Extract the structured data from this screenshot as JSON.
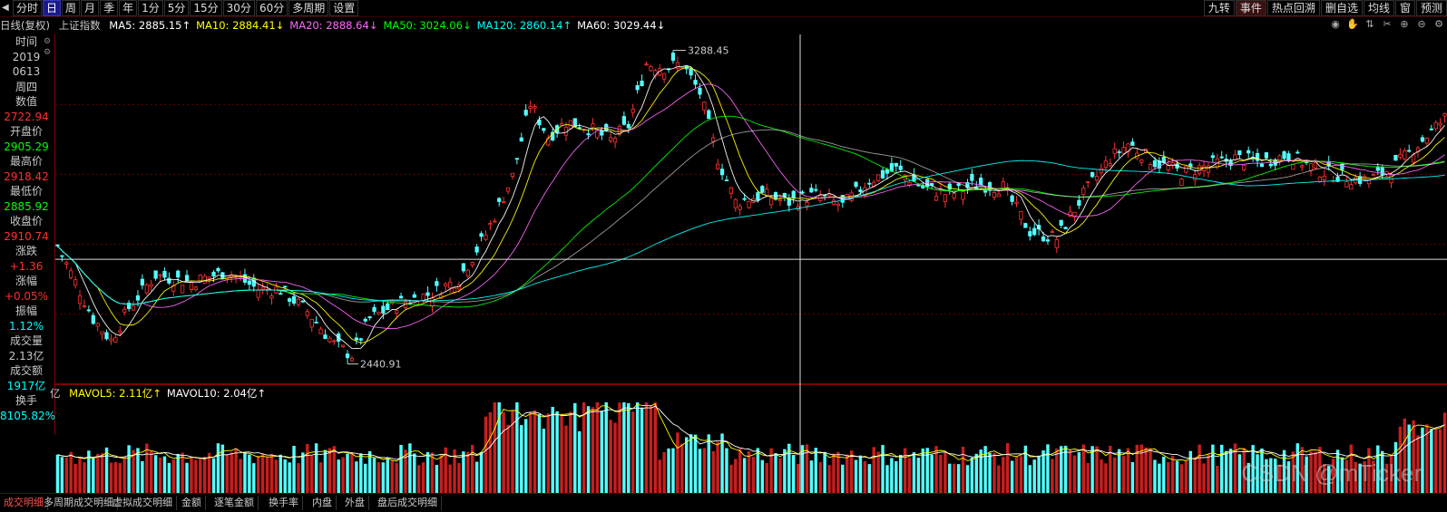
{
  "toolbar": {
    "left_items": [
      "分时",
      "日",
      "周",
      "月",
      "季",
      "年",
      "1分",
      "5分",
      "15分",
      "30分",
      "60分",
      "多周期",
      "设置"
    ],
    "active": "日",
    "right_items": [
      "九转",
      "事件",
      "热点回溯",
      "删自选",
      "均线",
      "窗",
      "预测"
    ],
    "right_active": "事件"
  },
  "infobar": {
    "label1": "日线(复权)",
    "label2": "上证指数",
    "ma": [
      {
        "text": "MA5: 2885.15↑",
        "color": "#ffffff"
      },
      {
        "text": "MA10: 2884.41↓",
        "color": "#ffff00"
      },
      {
        "text": "MA20: 2888.64↓",
        "color": "#ff66ff"
      },
      {
        "text": "MA50: 3024.06↓",
        "color": "#00ff00"
      },
      {
        "text": "MA120: 2860.14↑",
        "color": "#00ffff"
      },
      {
        "text": "MA60: 3029.44↓",
        "color": "#ffffff"
      }
    ]
  },
  "panel": [
    {
      "text": "时间",
      "color": "#c8c8c8"
    },
    {
      "text": "2019",
      "color": "#c8c8c8"
    },
    {
      "text": "0613",
      "color": "#c8c8c8"
    },
    {
      "text": "周四",
      "color": "#c8c8c8"
    },
    {
      "text": "数值",
      "color": "#c8c8c8"
    },
    {
      "text": "2722.94",
      "color": "#ff3030"
    },
    {
      "text": "开盘价",
      "color": "#c8c8c8"
    },
    {
      "text": "2905.29",
      "color": "#00ff00"
    },
    {
      "text": "最高价",
      "color": "#c8c8c8"
    },
    {
      "text": "2918.42",
      "color": "#ff3030"
    },
    {
      "text": "最低价",
      "color": "#c8c8c8"
    },
    {
      "text": "2885.92",
      "color": "#00ff00"
    },
    {
      "text": "收盘价",
      "color": "#c8c8c8"
    },
    {
      "text": "2910.74",
      "color": "#ff3030"
    },
    {
      "text": "涨跌",
      "color": "#c8c8c8"
    },
    {
      "text": "+1.36",
      "color": "#ff3030"
    },
    {
      "text": "涨幅",
      "color": "#c8c8c8"
    },
    {
      "text": "+0.05%",
      "color": "#ff3030"
    },
    {
      "text": "振幅",
      "color": "#c8c8c8"
    },
    {
      "text": "1.12%",
      "color": "#00ffff"
    },
    {
      "text": "成交量",
      "color": "#c8c8c8"
    },
    {
      "text": "2.13亿",
      "color": "#c8c8c8"
    },
    {
      "text": "成交额",
      "color": "#c8c8c8"
    },
    {
      "text": "1917亿",
      "color": "#00ffff"
    },
    {
      "text": "换手",
      "color": "#c8c8c8"
    },
    {
      "text": "8105.82%",
      "color": "#00ffff"
    }
  ],
  "volume_bar": {
    "prefix": "亿",
    "items": [
      {
        "text": "MAVOL5: 2.11亿↑",
        "color": "#ffff00"
      },
      {
        "text": "MAVOL10: 2.04亿↑",
        "color": "#ffffff"
      }
    ]
  },
  "bottom_tabs": [
    "成交明细",
    "多周期成交明细",
    "虚拟成交明细",
    "金额",
    "逐笔金额",
    "换手率",
    "内盘",
    "外盘",
    "盘后成交明细"
  ],
  "watermark": "CSDN @mTicker",
  "chart_data": {
    "type": "candlestick",
    "title": "上证指数",
    "high_label": "3288.45",
    "low_label": "2440.91",
    "crosshair_value": 2722.94,
    "anchor_points": [
      {
        "i": 0,
        "c": 2760
      },
      {
        "i": 8,
        "c": 2560
      },
      {
        "i": 12,
        "c": 2500
      },
      {
        "i": 16,
        "c": 2590
      },
      {
        "i": 22,
        "c": 2680
      },
      {
        "i": 30,
        "c": 2660
      },
      {
        "i": 38,
        "c": 2690
      },
      {
        "i": 45,
        "c": 2640
      },
      {
        "i": 50,
        "c": 2640
      },
      {
        "i": 56,
        "c": 2580
      },
      {
        "i": 62,
        "c": 2490
      },
      {
        "i": 66,
        "c": 2460
      },
      {
        "i": 70,
        "c": 2560
      },
      {
        "i": 76,
        "c": 2600
      },
      {
        "i": 84,
        "c": 2630
      },
      {
        "i": 90,
        "c": 2670
      },
      {
        "i": 96,
        "c": 2790
      },
      {
        "i": 102,
        "c": 2950
      },
      {
        "i": 106,
        "c": 3150
      },
      {
        "i": 110,
        "c": 3060
      },
      {
        "i": 114,
        "c": 3100
      },
      {
        "i": 118,
        "c": 3090
      },
      {
        "i": 124,
        "c": 3050
      },
      {
        "i": 128,
        "c": 3090
      },
      {
        "i": 132,
        "c": 3260
      },
      {
        "i": 136,
        "c": 3250
      },
      {
        "i": 140,
        "c": 3260
      },
      {
        "i": 144,
        "c": 3180
      },
      {
        "i": 148,
        "c": 3000
      },
      {
        "i": 152,
        "c": 2880
      },
      {
        "i": 158,
        "c": 2900
      },
      {
        "i": 164,
        "c": 2880
      },
      {
        "i": 170,
        "c": 2900
      },
      {
        "i": 176,
        "c": 2870
      },
      {
        "i": 182,
        "c": 2940
      },
      {
        "i": 188,
        "c": 2970
      },
      {
        "i": 194,
        "c": 2920
      },
      {
        "i": 200,
        "c": 2900
      },
      {
        "i": 206,
        "c": 2930
      },
      {
        "i": 212,
        "c": 2920
      },
      {
        "i": 218,
        "c": 2800
      },
      {
        "i": 224,
        "c": 2780
      },
      {
        "i": 230,
        "c": 2900
      },
      {
        "i": 236,
        "c": 3000
      },
      {
        "i": 240,
        "c": 3040
      },
      {
        "i": 246,
        "c": 2990
      },
      {
        "i": 252,
        "c": 2960
      },
      {
        "i": 258,
        "c": 2980
      },
      {
        "i": 264,
        "c": 3000
      },
      {
        "i": 270,
        "c": 2990
      },
      {
        "i": 276,
        "c": 3010
      },
      {
        "i": 282,
        "c": 2970
      },
      {
        "i": 288,
        "c": 2950
      },
      {
        "i": 294,
        "c": 2940
      },
      {
        "i": 300,
        "c": 2980
      },
      {
        "i": 306,
        "c": 3050
      },
      {
        "i": 311,
        "c": 3110
      }
    ],
    "bar_count": 312,
    "ylim": [
      2380,
      3340
    ]
  }
}
